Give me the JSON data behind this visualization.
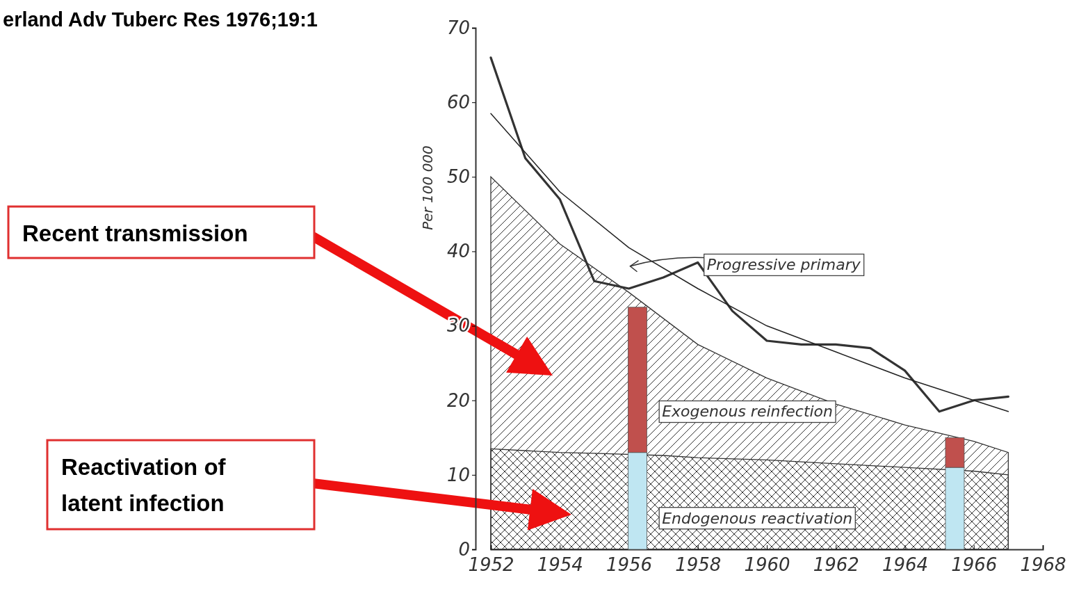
{
  "chart_data": [
    {
      "type": "line",
      "ylabel": "Per 100 000",
      "xlim": [
        1952,
        1968
      ],
      "xticks": [
        1952,
        1954,
        1956,
        1958,
        1960,
        1962,
        1964,
        1966,
        1968
      ],
      "ylim": [
        0,
        70
      ],
      "yticks": [
        0,
        10,
        20,
        30,
        40,
        50,
        60,
        70
      ],
      "series": [
        {
          "type": "area",
          "color": "#333333",
          "x": [
            1952,
            1954,
            1956,
            1958,
            1960,
            1962,
            1964,
            1966,
            1967
          ],
          "values": [
            50,
            41,
            34.5,
            27.5,
            23,
            19.5,
            16.7,
            14.5,
            13
          ]
        },
        {
          "type": "area",
          "color": "#333333",
          "x": [
            1952,
            1954,
            1955,
            1957,
            1958,
            1960,
            1962,
            1964,
            1966,
            1967
          ],
          "values": [
            13.5,
            13,
            12.9,
            12.6,
            12.3,
            12,
            11.5,
            11,
            10.5,
            10
          ]
        },
        {
          "color": "#333333",
          "x": [
            1952,
            1953,
            1954,
            1955,
            1956,
            1957,
            1958,
            1959,
            1960,
            1961,
            1962,
            1963,
            1964,
            1965,
            1966,
            1967
          ],
          "values": [
            66,
            52.5,
            47,
            36,
            35,
            36.5,
            38.5,
            32,
            28,
            27.5,
            27.5,
            27,
            24,
            18.5,
            20,
            20.5
          ]
        },
        {
          "type": "line",
          "color": "#222222",
          "x": [
            1952,
            1954,
            1956,
            1958,
            1960,
            1962,
            1964,
            1966,
            1967
          ],
          "values": [
            58.5,
            48,
            40.5,
            35,
            30,
            26.5,
            23,
            20,
            18.5
          ]
        }
      ],
      "annotations": [
        "Progressive primary",
        "Exogenous reinfection",
        "Endogenous reactivation",
        "Recent transmission",
        "Reactivation of latent infection",
        "erland Adv Tuberc Res 1976;19:1"
      ]
    },
    {
      "type": "bar",
      "stacked": true,
      "xlim": [
        1952,
        1968
      ],
      "ylim": [
        0,
        70
      ],
      "tick_labels": false,
      "x": [
        1956.25,
        1965.45
      ],
      "series": [
        {
          "color": "#bfe6f2",
          "values": [
            13,
            11
          ]
        },
        {
          "color": "#c0504d",
          "values": [
            19.5,
            4
          ]
        }
      ]
    }
  ]
}
